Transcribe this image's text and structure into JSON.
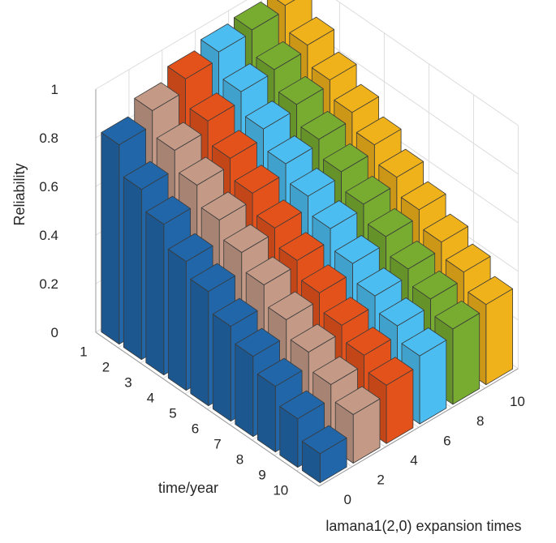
{
  "chart_data": {
    "type": "bar3d",
    "title": "",
    "xlabel": "time/year",
    "ylabel": "lamana1(2,0) expansion times",
    "zlabel": "Reliability",
    "x_ticks": [
      "1",
      "2",
      "3",
      "4",
      "5",
      "6",
      "7",
      "8",
      "9",
      "10"
    ],
    "y_ticks": [
      "0",
      "2",
      "4",
      "6",
      "8",
      "10"
    ],
    "z_ticks": [
      "0",
      "0.2",
      "0.4",
      "0.6",
      "0.8",
      "1"
    ],
    "zlim": [
      0,
      1
    ],
    "grid": true,
    "x": [
      1,
      2,
      3,
      4,
      5,
      6,
      7,
      8,
      9,
      10
    ],
    "series": [
      {
        "y": 0,
        "color": "#2166a8",
        "values": [
          0.82,
          0.7,
          0.62,
          0.53,
          0.47,
          0.39,
          0.33,
          0.27,
          0.2,
          0.12
        ]
      },
      {
        "y": 2,
        "color": "#c49a87",
        "values": [
          0.88,
          0.78,
          0.7,
          0.62,
          0.55,
          0.48,
          0.4,
          0.33,
          0.26,
          0.2
        ]
      },
      {
        "y": 4,
        "color": "#e4521c",
        "values": [
          0.93,
          0.82,
          0.73,
          0.65,
          0.57,
          0.5,
          0.43,
          0.36,
          0.3,
          0.24
        ]
      },
      {
        "y": 6,
        "color": "#4bbdf0",
        "values": [
          0.96,
          0.86,
          0.77,
          0.69,
          0.62,
          0.55,
          0.47,
          0.4,
          0.34,
          0.28
        ]
      },
      {
        "y": 8,
        "color": "#77ac30",
        "values": [
          0.97,
          0.87,
          0.79,
          0.71,
          0.64,
          0.57,
          0.5,
          0.43,
          0.37,
          0.31
        ]
      },
      {
        "y": 10,
        "color": "#f0b21a",
        "values": [
          0.99,
          0.89,
          0.81,
          0.74,
          0.67,
          0.6,
          0.53,
          0.46,
          0.4,
          0.33
        ]
      }
    ]
  }
}
